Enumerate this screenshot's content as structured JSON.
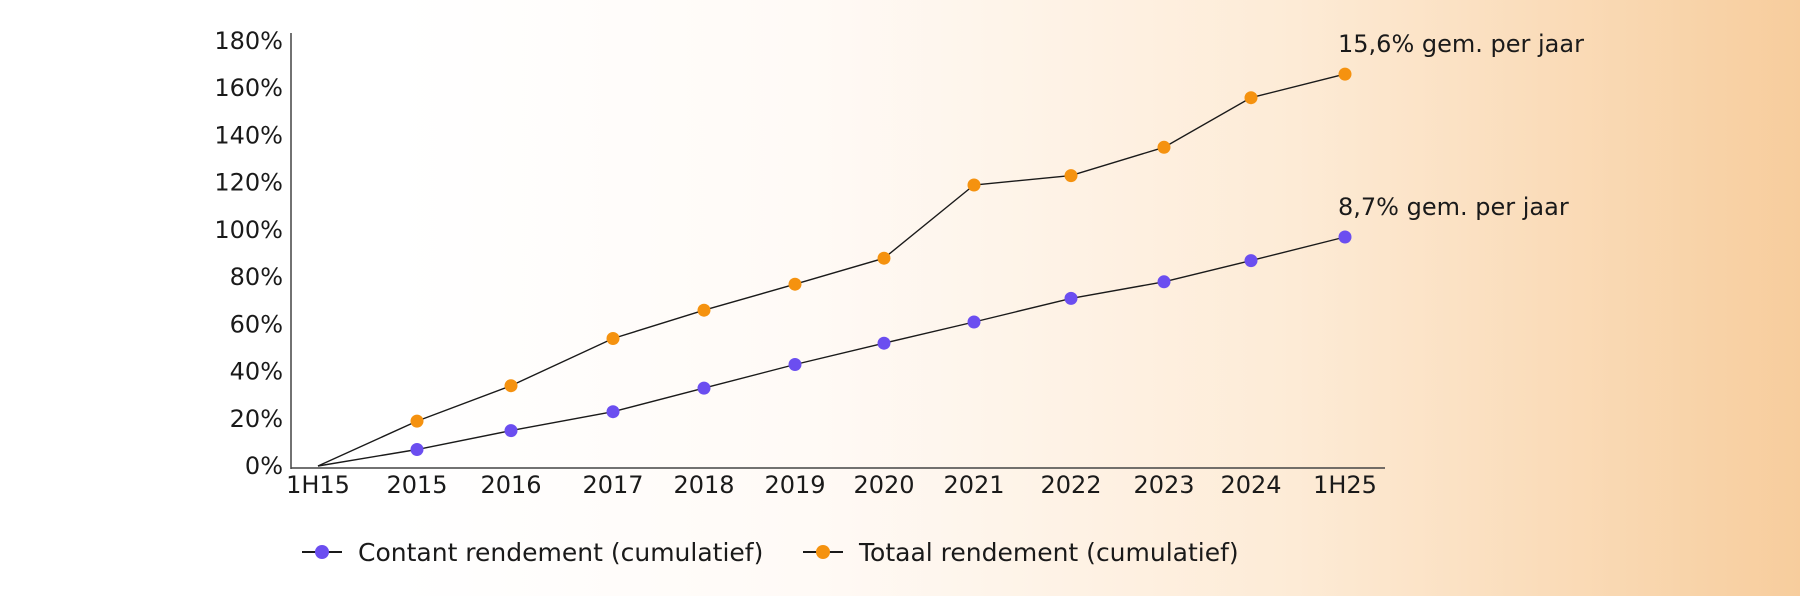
{
  "chart_data": {
    "type": "line",
    "categories": [
      "1H15",
      "2015",
      "2016",
      "2017",
      "2018",
      "2019",
      "2020",
      "2021",
      "2022",
      "2023",
      "2024",
      "1H25"
    ],
    "ylim": [
      0,
      180
    ],
    "yticks": [
      "0%",
      "20%",
      "40%",
      "60%",
      "80%",
      "100%",
      "120%",
      "140%",
      "160%",
      "180%"
    ],
    "series": [
      {
        "name": "Contant rendement (cumulatief)",
        "color": "#6b4ef0",
        "values": [
          0,
          7,
          15,
          23,
          33,
          43,
          52,
          61,
          71,
          78,
          87,
          97
        ],
        "annotation": "8,7% gem. per jaar"
      },
      {
        "name": "Totaal rendement (cumulatief)",
        "color": "#f5920f",
        "values": [
          0,
          19,
          34,
          54,
          66,
          77,
          88,
          119,
          123,
          135,
          156,
          166
        ],
        "annotation": "15,6% gem. per jaar"
      }
    ],
    "xlabel": "",
    "ylabel": "",
    "legend_position": "bottom-left",
    "grid": false
  }
}
